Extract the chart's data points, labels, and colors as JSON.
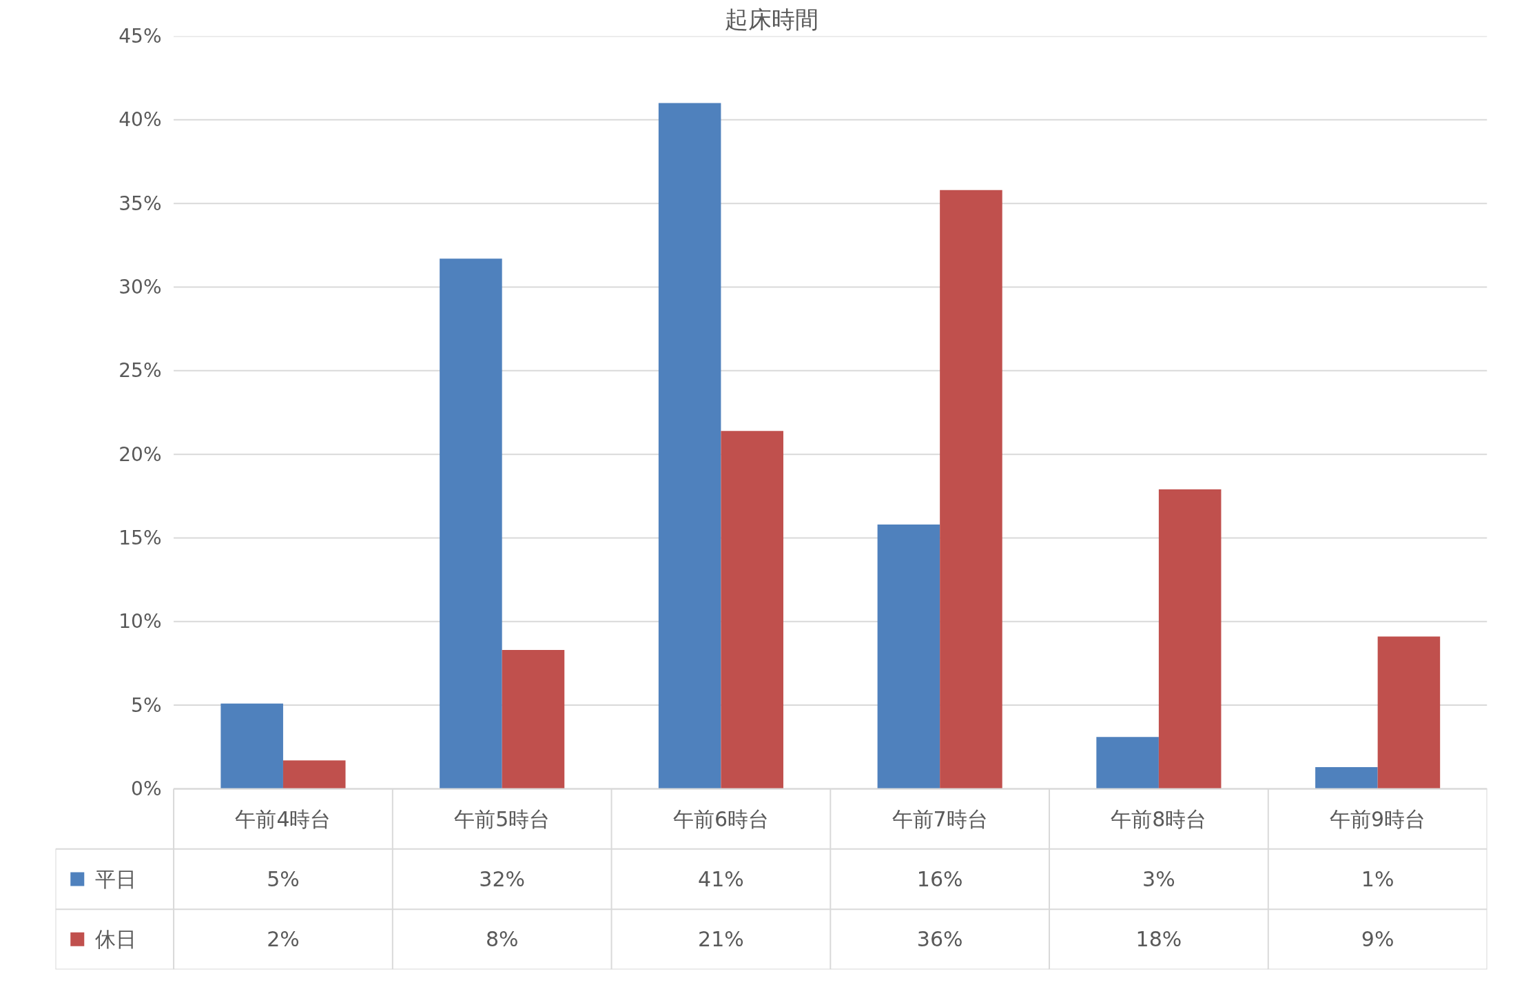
{
  "chart_data": {
    "type": "bar",
    "title": "起床時間",
    "categories": [
      "午前4時台",
      "午前5時台",
      "午前6時台",
      "午前7時台",
      "午前8時台",
      "午前9時台"
    ],
    "series": [
      {
        "name": "平日",
        "color": "#4f81bd",
        "values": [
          5.1,
          31.7,
          41.0,
          15.8,
          3.1,
          1.3
        ],
        "value_labels": [
          "5%",
          "32%",
          "41%",
          "16%",
          "3%",
          "1%"
        ]
      },
      {
        "name": "休日",
        "color": "#c0504d",
        "values": [
          1.7,
          8.3,
          21.4,
          35.8,
          17.9,
          9.1
        ],
        "value_labels": [
          "2%",
          "8%",
          "21%",
          "36%",
          "18%",
          "9%"
        ]
      }
    ],
    "ylim": [
      0,
      45
    ],
    "yticks": [
      {
        "value": 0,
        "label": "0%"
      },
      {
        "value": 5,
        "label": "5%"
      },
      {
        "value": 10,
        "label": "10%"
      },
      {
        "value": 15,
        "label": "15%"
      },
      {
        "value": 20,
        "label": "20%"
      },
      {
        "value": 25,
        "label": "25%"
      },
      {
        "value": 30,
        "label": "30%"
      },
      {
        "value": 35,
        "label": "35%"
      },
      {
        "value": 40,
        "label": "40%"
      },
      {
        "value": 45,
        "label": "45%"
      }
    ],
    "grid": "y",
    "legend": "bottom"
  }
}
